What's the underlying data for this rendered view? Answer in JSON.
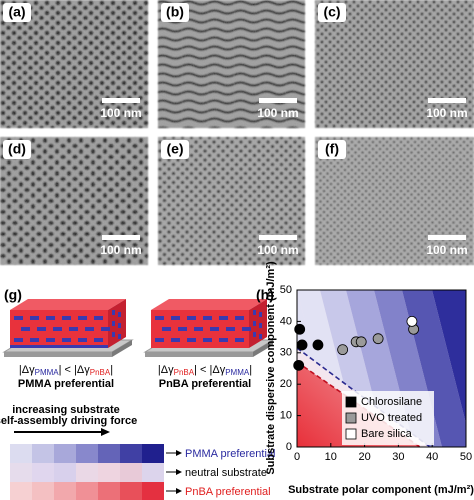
{
  "panels": [
    {
      "label": "(a)",
      "scale_bar": "100 nm"
    },
    {
      "label": "(b)",
      "scale_bar": "100 nm"
    },
    {
      "label": "(c)",
      "scale_bar": "100 nm"
    },
    {
      "label": "(d)",
      "scale_bar": "100 nm"
    },
    {
      "label": "(e)",
      "scale_bar": "100 nm"
    },
    {
      "label": "(f)",
      "scale_bar": "100 nm"
    }
  ],
  "schematic": {
    "label": "(g)",
    "left": {
      "relation": [
        "|Δγ",
        "PMMA",
        "| < |Δγ",
        "PnBA",
        "|"
      ],
      "caption": "PMMA preferential"
    },
    "right": {
      "relation": [
        "|Δγ",
        "PnBA",
        "| < |Δγ",
        "PMMA",
        "|"
      ],
      "caption": "PnBA preferential"
    },
    "legend": {
      "arrow_label": [
        "increasing substrate",
        "self-assembly driving force"
      ],
      "rows": [
        "PMMA preferential",
        "neutral substrate",
        "PnBA preferential"
      ]
    }
  },
  "chart_data": {
    "type": "scatter",
    "label": "(h)",
    "x_label": "Substrate polar component (mJ/m²)",
    "y_label": "Substrate dispersive component (mJ/m²)",
    "xlim": [
      0,
      50
    ],
    "ylim": [
      0,
      50
    ],
    "xticks": [
      0,
      10,
      20,
      30,
      40,
      50
    ],
    "yticks": [
      0,
      10,
      20,
      30,
      40,
      50
    ],
    "legend": "bottom-right",
    "series": [
      {
        "name": "Chlorosilane",
        "color": "#000000",
        "x": [
          0.5,
          0.8,
          1.5,
          6.2
        ],
        "values": [
          26,
          37.5,
          32.5,
          32.5
        ]
      },
      {
        "name": "UVO treated",
        "color": "#9a9a9a",
        "x": [
          13.5,
          17.5,
          19,
          24,
          34.5
        ],
        "values": [
          31,
          33.5,
          33.5,
          34.5,
          37.5
        ]
      },
      {
        "name": "Bare silica",
        "color": "#ffffff",
        "x": [
          34
        ],
        "values": [
          40
        ]
      }
    ]
  }
}
